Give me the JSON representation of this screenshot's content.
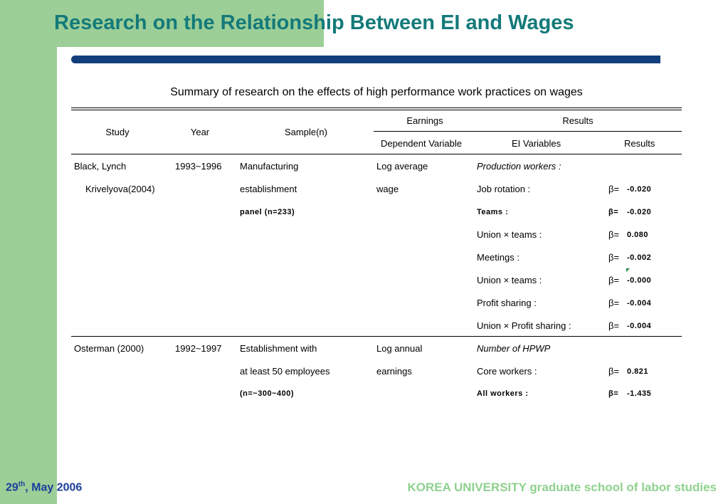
{
  "slide": {
    "title": "Research on the Relationship Between EI and Wages",
    "caption": "Summary of research on the effects of high performance work practices on wages",
    "footer_left_day": "29",
    "footer_left_sup": "th",
    "footer_left_rest": ", May 2006",
    "footer_right": "KOREA UNIVERSITY graduate school of labor studies"
  },
  "colors": {
    "title": "#147a7a",
    "green_panel": "#9cce97",
    "navy_bar": "#123e7b",
    "footer_left": "#1a3f9b",
    "footer_right": "#8fd18f"
  },
  "table": {
    "headers": {
      "study": "Study",
      "year": "Year",
      "sample": "Sample(n)",
      "earnings": "Earnings",
      "results_group": "Results",
      "dependent": "Dependent Variable",
      "ei_variables": "EI Variables",
      "results": "Results"
    },
    "row1": {
      "study_1": "Black, Lynch",
      "study_2": "Krivelyova(2004)",
      "year": "1993~1996",
      "sample_1": "Manufacturing",
      "sample_2": "establishment",
      "sample_3": "panel (n=233)",
      "dep_1": "Log average",
      "dep_2": "wage",
      "group_label": "Production workers :",
      "items": [
        {
          "label": "Job rotation :",
          "beta": "β=",
          "value": "-0.020"
        },
        {
          "label": "Teams :",
          "beta": "β=",
          "value": "-0.020"
        },
        {
          "label": "Union × teams :",
          "beta": "β=",
          "value": "0.080"
        },
        {
          "label": "Meetings :",
          "beta": "β=",
          "value": "-0.002"
        },
        {
          "label": "Union × teams :",
          "beta": "β=",
          "value": "-0.000"
        },
        {
          "label": "Profit sharing :",
          "beta": "β=",
          "value": "-0.004"
        },
        {
          "label": "Union × Profit sharing :",
          "beta": "β=",
          "value": "-0.004"
        }
      ]
    },
    "row2": {
      "study": "Osterman (2000)",
      "year": "1992~1997",
      "sample_1": "Establishment with",
      "sample_2": "at least 50 employees",
      "sample_3": "(n=~300~400)",
      "dep_1": "Log annual",
      "dep_2": "earnings",
      "group_label": "Number of HPWP",
      "items": [
        {
          "label": "Core workers :",
          "beta": "β=",
          "value": "0.821"
        },
        {
          "label": "All workers :",
          "beta": "β=",
          "value": "-1.435"
        }
      ]
    }
  }
}
